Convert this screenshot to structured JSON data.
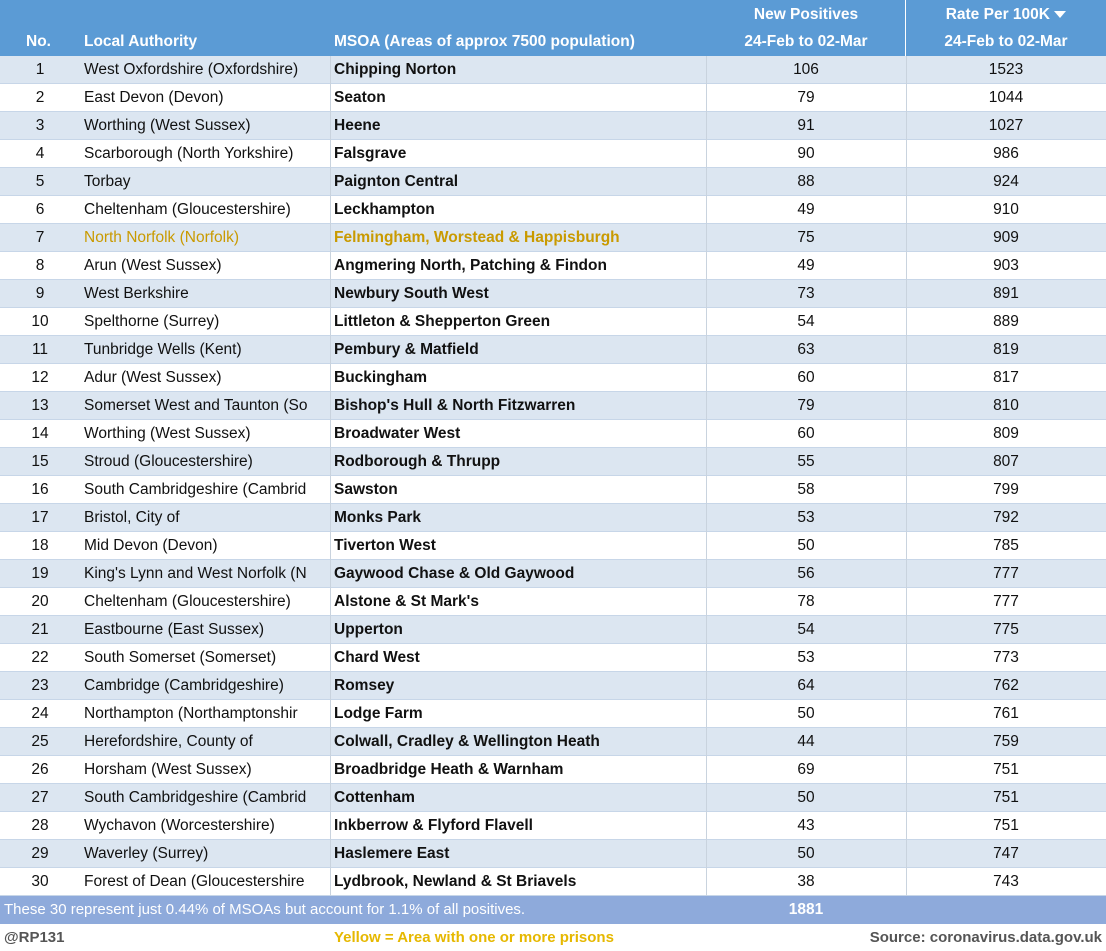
{
  "header": {
    "no": "No.",
    "local_authority": "Local Authority",
    "msoa": "MSOA (Areas of approx 7500 population)",
    "new_positives": "New Positives",
    "new_positives_period": "24-Feb to 02-Mar",
    "rate": "Rate Per 100K",
    "rate_period": "24-Feb to 02-Mar"
  },
  "table": {
    "rows": [
      [
        1,
        "West Oxfordshire (Oxfordshire)",
        "Chipping Norton",
        106,
        1523
      ],
      [
        2,
        "East Devon (Devon)",
        "Seaton",
        79,
        1044
      ],
      [
        3,
        "Worthing (West Sussex)",
        "Heene",
        91,
        1027
      ],
      [
        4,
        "Scarborough (North Yorkshire)",
        "Falsgrave",
        90,
        986
      ],
      [
        5,
        "Torbay",
        "Paignton Central",
        88,
        924
      ],
      [
        6,
        "Cheltenham (Gloucestershire)",
        "Leckhampton",
        49,
        910
      ],
      [
        7,
        "North Norfolk (Norfolk)",
        "Felmingham, Worstead & Happisburgh",
        75,
        909
      ],
      [
        8,
        "Arun (West Sussex)",
        "Angmering North, Patching & Findon",
        49,
        903
      ],
      [
        9,
        "West Berkshire",
        "Newbury South West",
        73,
        891
      ],
      [
        10,
        "Spelthorne (Surrey)",
        "Littleton & Shepperton Green",
        54,
        889
      ],
      [
        11,
        "Tunbridge Wells (Kent)",
        "Pembury & Matfield",
        63,
        819
      ],
      [
        12,
        "Adur (West Sussex)",
        "Buckingham",
        60,
        817
      ],
      [
        13,
        "Somerset West and Taunton (So",
        "Bishop's Hull & North Fitzwarren",
        79,
        810
      ],
      [
        14,
        "Worthing (West Sussex)",
        "Broadwater West",
        60,
        809
      ],
      [
        15,
        "Stroud (Gloucestershire)",
        "Rodborough & Thrupp",
        55,
        807
      ],
      [
        16,
        "South Cambridgeshire (Cambrid",
        "Sawston",
        58,
        799
      ],
      [
        17,
        "Bristol, City of",
        "Monks Park",
        53,
        792
      ],
      [
        18,
        "Mid Devon (Devon)",
        "Tiverton West",
        50,
        785
      ],
      [
        19,
        "King's Lynn and West Norfolk (N",
        "Gaywood Chase & Old Gaywood",
        56,
        777
      ],
      [
        20,
        "Cheltenham (Gloucestershire)",
        "Alstone & St Mark's",
        78,
        777
      ],
      [
        21,
        "Eastbourne (East Sussex)",
        "Upperton",
        54,
        775
      ],
      [
        22,
        "South Somerset (Somerset)",
        "Chard West",
        53,
        773
      ],
      [
        23,
        "Cambridge (Cambridgeshire)",
        "Romsey",
        64,
        762
      ],
      [
        24,
        "Northampton (Northamptonshir",
        "Lodge Farm",
        50,
        761
      ],
      [
        25,
        "Herefordshire, County of",
        "Colwall, Cradley & Wellington Heath",
        44,
        759
      ],
      [
        26,
        "Horsham (West Sussex)",
        "Broadbridge Heath & Warnham",
        69,
        751
      ],
      [
        27,
        "South Cambridgeshire (Cambrid",
        "Cottenham",
        50,
        751
      ],
      [
        28,
        "Wychavon (Worcestershire)",
        "Inkberrow & Flyford Flavell",
        43,
        751
      ],
      [
        29,
        "Waverley (Surrey)",
        "Haslemere East",
        50,
        747
      ],
      [
        30,
        "Forest of Dean (Gloucestershire",
        "Lydbrook, Newland & St Briavels",
        38,
        743
      ]
    ]
  },
  "summary": {
    "note": "These 30 represent just 0.44% of MSOAs but account for 1.1% of all positives.",
    "total": 1881
  },
  "footer": {
    "author": "@RP131",
    "legend": "Yellow = Area with one or more prisons",
    "source": "Source: coronavirus.data.gov.uk"
  }
}
